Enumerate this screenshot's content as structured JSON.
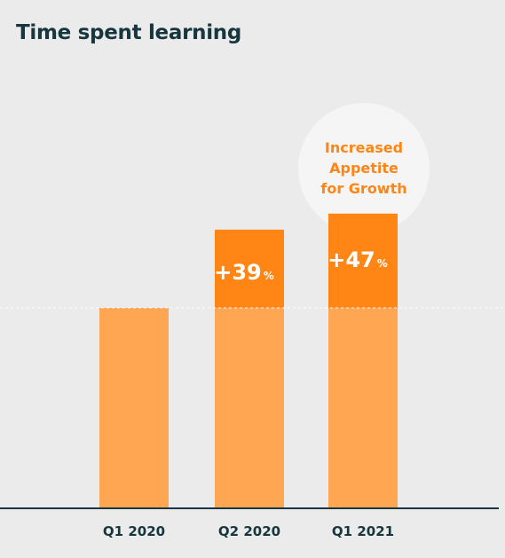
{
  "chart_data": {
    "type": "bar",
    "title": "Time spent learning",
    "xlabel": "",
    "ylabel": "",
    "categories": [
      "Q1 2020",
      "Q2 2020",
      "Q1 2021"
    ],
    "baseline_index": 100,
    "values": [
      100,
      139,
      147
    ],
    "growth_labels": [
      {
        "category": "Q2 2020",
        "value": "+39",
        "unit": "%"
      },
      {
        "category": "Q1 2021",
        "value": "+47",
        "unit": "%"
      }
    ],
    "annotation": {
      "category": "Q1 2021",
      "lines": [
        "Increased",
        "Appetite",
        "for Growth"
      ]
    },
    "reference_line": "dashed at Q1 2020 level",
    "grid": false,
    "colors": {
      "base": "#ffa652",
      "growth": "#ff8514",
      "growth_text": "#ffffff",
      "annotation_text": "#ff8514",
      "annotation_circle": "#f5f5f5",
      "axis": "#17363d",
      "title": "#17363d",
      "reference_line": "#ffffff"
    }
  }
}
